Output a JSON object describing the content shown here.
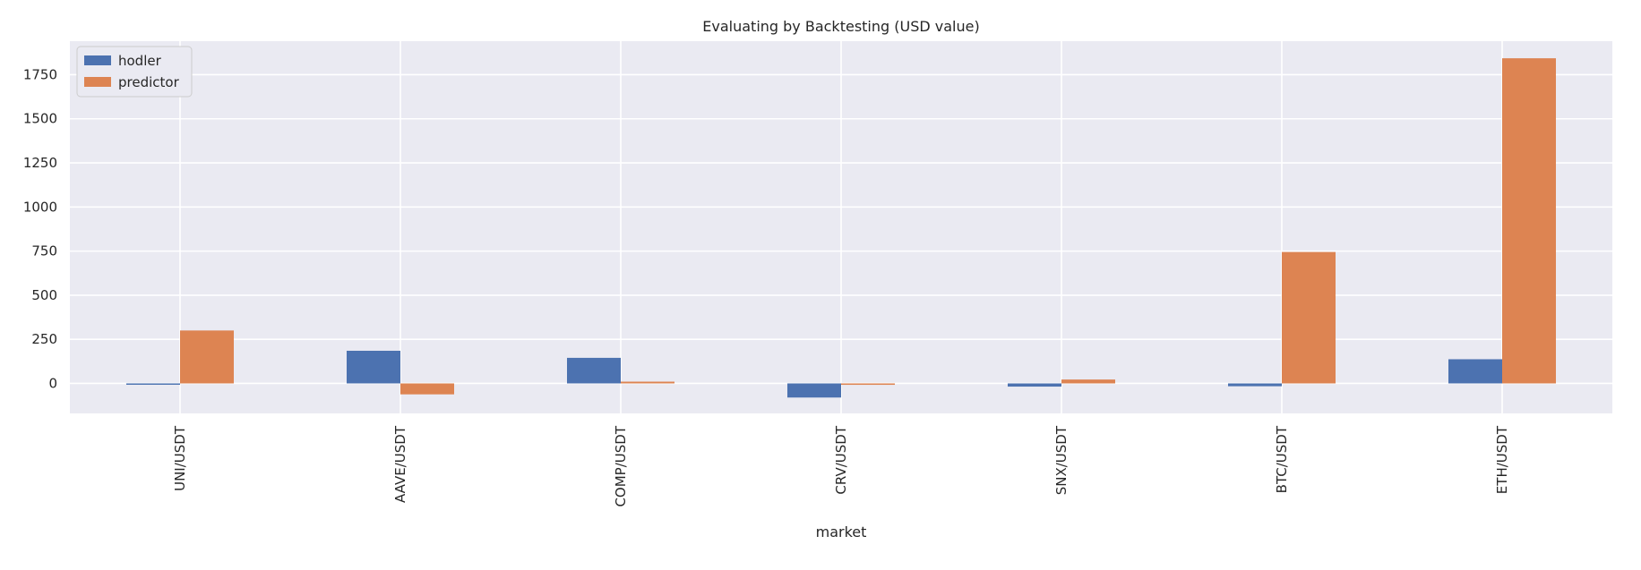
{
  "chart_data": {
    "type": "bar",
    "title": "Evaluating by Backtesting (USD value)",
    "xlabel": "market",
    "ylabel": "",
    "categories": [
      "UNI/USDT",
      "AAVE/USDT",
      "COMP/USDT",
      "CRV/USDT",
      "SNX/USDT",
      "BTC/USDT",
      "ETH/USDT"
    ],
    "series": [
      {
        "name": "hodler",
        "color": "#4c72b0",
        "values": [
          -4,
          185,
          145,
          -80,
          -18,
          -16,
          137
        ]
      },
      {
        "name": "predictor",
        "color": "#dd8452",
        "values": [
          300,
          -62,
          10,
          -8,
          22,
          745,
          1843
        ]
      }
    ],
    "ylim": [
      -170,
      1940
    ],
    "yticks": [
      0,
      250,
      500,
      750,
      1000,
      1250,
      1500,
      1750
    ],
    "grid": true,
    "legend": "top-left",
    "background": "#eaeaf2"
  }
}
